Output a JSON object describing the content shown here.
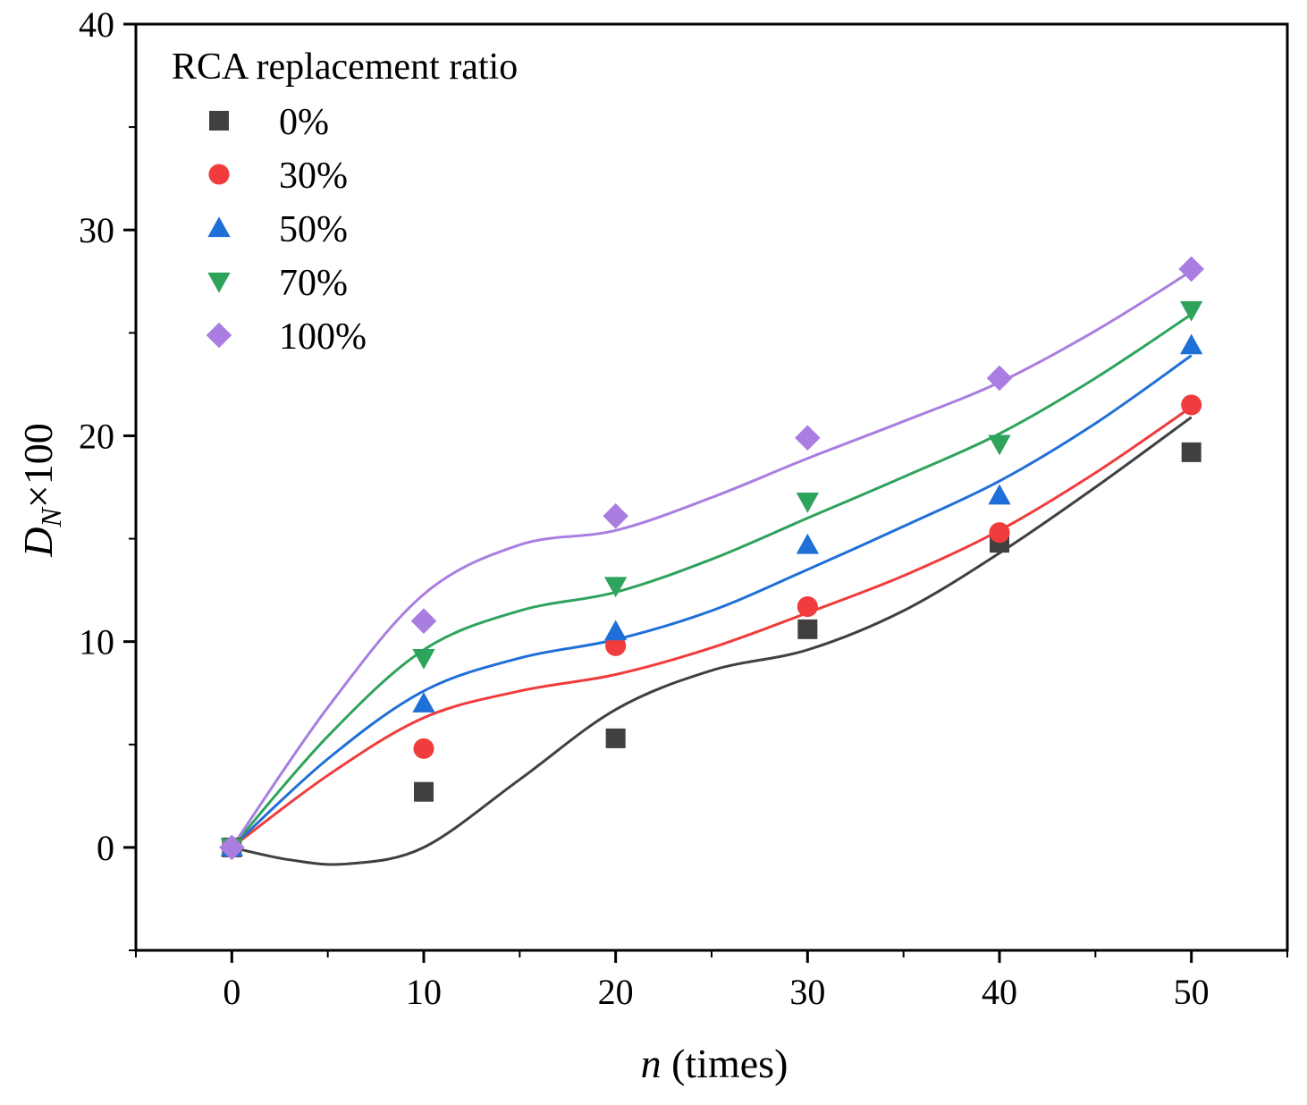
{
  "chart_data": {
    "type": "scatter",
    "title": "",
    "xlabel_var": "n",
    "xlabel_unit": " (times)",
    "ylabel_var": "D",
    "ylabel_sub": "N",
    "ylabel_rest": "×100",
    "xlim": [
      -5,
      55
    ],
    "ylim": [
      -5,
      40
    ],
    "xticks": [
      0,
      10,
      20,
      30,
      40,
      50
    ],
    "yticks": [
      0,
      10,
      20,
      30,
      40
    ],
    "x": [
      0,
      10,
      20,
      30,
      40,
      50
    ],
    "legend_title": "RCA replacement ratio",
    "legend_position": "top-left",
    "grid": false,
    "series": [
      {
        "name": "0%",
        "marker": "square",
        "color": "#404040",
        "values": [
          0,
          2.7,
          5.3,
          10.6,
          14.8,
          19.2
        ],
        "fit": [
          [
            0,
            0
          ],
          [
            3,
            -0.6
          ],
          [
            6,
            -0.8
          ],
          [
            10,
            0
          ],
          [
            15,
            3.3
          ],
          [
            20,
            6.7
          ],
          [
            25,
            8.6
          ],
          [
            30,
            9.6
          ],
          [
            35,
            11.5
          ],
          [
            40,
            14.3
          ],
          [
            45,
            17.5
          ],
          [
            50,
            20.9
          ]
        ]
      },
      {
        "name": "30%",
        "marker": "circle",
        "color": "#f03c3c",
        "values": [
          0,
          4.8,
          9.8,
          11.7,
          15.3,
          21.5
        ],
        "fit": [
          [
            0,
            0
          ],
          [
            5,
            3.5
          ],
          [
            10,
            6.3
          ],
          [
            15,
            7.6
          ],
          [
            20,
            8.4
          ],
          [
            25,
            9.7
          ],
          [
            30,
            11.4
          ],
          [
            35,
            13.2
          ],
          [
            40,
            15.4
          ],
          [
            45,
            18.2
          ],
          [
            50,
            21.4
          ]
        ]
      },
      {
        "name": "50%",
        "marker": "triangle-up",
        "color": "#1f6fd8",
        "values": [
          0,
          7.0,
          10.5,
          14.7,
          17.1,
          24.4
        ],
        "fit": [
          [
            0,
            0
          ],
          [
            5,
            4.3
          ],
          [
            10,
            7.6
          ],
          [
            15,
            9.2
          ],
          [
            20,
            10.1
          ],
          [
            25,
            11.5
          ],
          [
            30,
            13.5
          ],
          [
            35,
            15.6
          ],
          [
            40,
            17.8
          ],
          [
            45,
            20.6
          ],
          [
            50,
            23.9
          ]
        ]
      },
      {
        "name": "70%",
        "marker": "triangle-down",
        "color": "#2ea35c",
        "values": [
          0,
          9.2,
          12.7,
          16.8,
          19.6,
          26.1
        ],
        "fit": [
          [
            0,
            0
          ],
          [
            5,
            5.4
          ],
          [
            10,
            9.6
          ],
          [
            15,
            11.5
          ],
          [
            20,
            12.4
          ],
          [
            25,
            14.0
          ],
          [
            30,
            16.0
          ],
          [
            35,
            18.0
          ],
          [
            40,
            20.1
          ],
          [
            45,
            22.8
          ],
          [
            50,
            25.9
          ]
        ]
      },
      {
        "name": "100%",
        "marker": "diamond",
        "color": "#a97ee0",
        "values": [
          0,
          11.0,
          16.1,
          19.9,
          22.8,
          28.1
        ],
        "fit": [
          [
            0,
            0
          ],
          [
            5,
            6.8
          ],
          [
            10,
            12.3
          ],
          [
            15,
            14.7
          ],
          [
            20,
            15.4
          ],
          [
            25,
            17.0
          ],
          [
            30,
            18.9
          ],
          [
            35,
            20.7
          ],
          [
            40,
            22.6
          ],
          [
            45,
            25.1
          ],
          [
            50,
            28.0
          ]
        ]
      }
    ]
  }
}
